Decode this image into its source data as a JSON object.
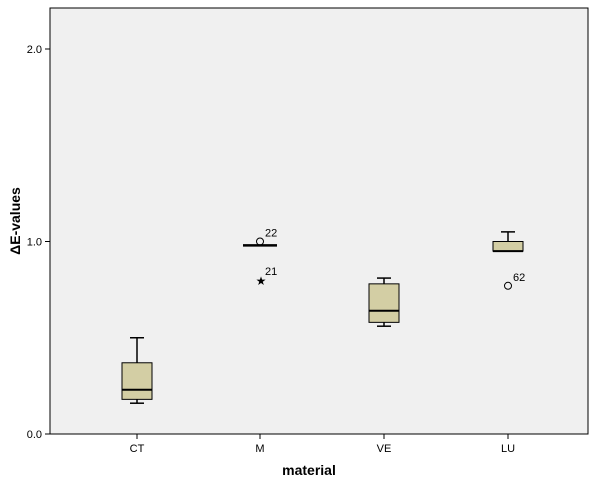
{
  "chart_data": {
    "type": "boxplot",
    "title": "",
    "xlabel": "material",
    "ylabel": "ΔE-values",
    "ylim": [
      0,
      2.2
    ],
    "yticks": [
      0.0,
      1.0,
      2.0
    ],
    "ytick_labels": [
      "0.0",
      "1.0",
      "2.0"
    ],
    "categories": [
      "CT",
      "M",
      "VE",
      "LU"
    ],
    "boxes": [
      {
        "category": "CT",
        "min": 0.16,
        "q1": 0.18,
        "median": 0.23,
        "q3": 0.37,
        "max": 0.5,
        "outliers": []
      },
      {
        "category": "M",
        "min": 0.98,
        "q1": 0.98,
        "median": 0.98,
        "q3": 0.98,
        "max": 0.98,
        "outliers": [
          {
            "value": 1.0,
            "label": "22",
            "marker": "circle"
          },
          {
            "value": 0.8,
            "label": "21",
            "marker": "star"
          }
        ]
      },
      {
        "category": "VE",
        "min": 0.56,
        "q1": 0.58,
        "median": 0.64,
        "q3": 0.78,
        "max": 0.81,
        "outliers": []
      },
      {
        "category": "LU",
        "min": 0.95,
        "q1": 0.95,
        "median": 0.95,
        "q3": 1.0,
        "max": 1.05,
        "outliers": [
          {
            "value": 0.77,
            "label": "62",
            "marker": "circle"
          }
        ]
      }
    ],
    "grid": false,
    "colors": {
      "plot_background": "#f0f0f0",
      "box_fill": "#d3cea4",
      "stroke": "#000000"
    }
  }
}
